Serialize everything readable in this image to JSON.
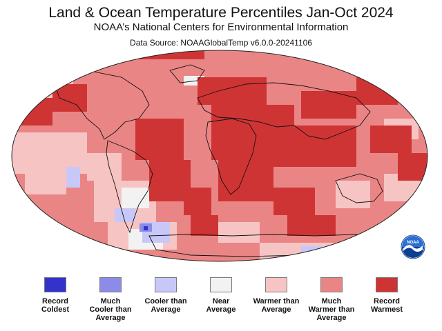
{
  "title": "Land & Ocean Temperature Percentiles Jan-Oct 2024",
  "subtitle": "NOAA’s National Centers for Environmental Information",
  "source": "Data Source: NOAAGlobalTemp v6.0.0-20241106",
  "logo": {
    "text": "NOAA",
    "colors": {
      "top": "#2a6fd1",
      "bottom": "#0b3d91"
    }
  },
  "legend": [
    {
      "label": "Record\nColdest",
      "color": "#3333cc"
    },
    {
      "label": "Much\nCooler than\nAverage",
      "color": "#8c8ce8"
    },
    {
      "label": "Cooler than\nAverage",
      "color": "#c8c8f8"
    },
    {
      "label": "Near\nAverage",
      "color": "#f2f2f2"
    },
    {
      "label": "Warmer than\nAverage",
      "color": "#f7c4c4"
    },
    {
      "label": "Much\nWarmer than\nAverage",
      "color": "#ea8585"
    },
    {
      "label": "Record\nWarmest",
      "color": "#cf3435"
    }
  ]
}
